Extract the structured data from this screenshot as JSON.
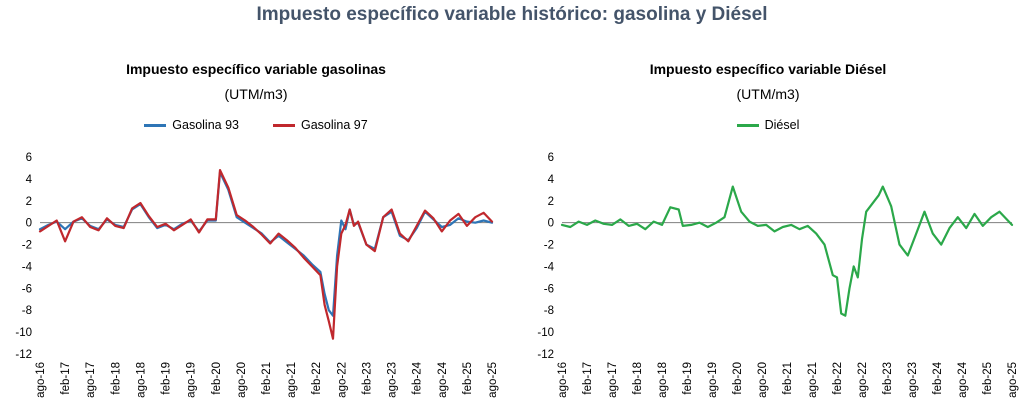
{
  "title": "Impuesto específico variable histórico: gasolina y Diésel",
  "colors": {
    "title": "#44546a",
    "gasolina93": "#2e75b6",
    "gasolina97": "#c0282d",
    "diesel": "#2ba84a"
  },
  "chart_data": [
    {
      "type": "line",
      "title": "Impuesto específico variable gasolinas",
      "subtitle": "(UTM/m3)",
      "ylim": [
        -12,
        6
      ],
      "yticks": [
        6,
        4,
        2,
        0,
        -2,
        -4,
        -6,
        -8,
        -10,
        -12
      ],
      "xlim": [
        "2016-08",
        "2025-08"
      ],
      "xticks": [
        "ago-16",
        "feb-17",
        "ago-17",
        "feb-18",
        "ago-18",
        "feb-19",
        "ago-19",
        "feb-20",
        "ago-20",
        "feb-21",
        "ago-21",
        "feb-22",
        "ago-22",
        "feb-23",
        "ago-23",
        "feb-24",
        "ago-24",
        "feb-25",
        "ago-25"
      ],
      "legend": "top",
      "series": [
        {
          "name": "Gasolina 93",
          "color": "#2e75b6",
          "x": [
            "2016-08",
            "2016-10",
            "2016-12",
            "2017-02",
            "2017-04",
            "2017-06",
            "2017-08",
            "2017-10",
            "2017-12",
            "2018-02",
            "2018-04",
            "2018-06",
            "2018-08",
            "2018-10",
            "2018-12",
            "2019-02",
            "2019-04",
            "2019-06",
            "2019-08",
            "2019-10",
            "2019-12",
            "2020-02",
            "2020-03",
            "2020-05",
            "2020-07",
            "2020-09",
            "2020-11",
            "2021-01",
            "2021-03",
            "2021-05",
            "2021-07",
            "2021-09",
            "2021-11",
            "2022-01",
            "2022-03",
            "2022-04",
            "2022-05",
            "2022-06",
            "2022-07",
            "2022-08",
            "2022-09",
            "2022-10",
            "2022-11",
            "2022-12",
            "2023-02",
            "2023-04",
            "2023-06",
            "2023-08",
            "2023-10",
            "2023-12",
            "2024-02",
            "2024-04",
            "2024-06",
            "2024-08",
            "2024-10",
            "2024-12",
            "2025-02",
            "2025-04",
            "2025-06",
            "2025-08"
          ],
          "y": [
            -0.6,
            -0.2,
            0.1,
            -0.6,
            0.1,
            0.4,
            -0.3,
            -0.6,
            0.3,
            -0.2,
            -0.4,
            1.2,
            1.7,
            0.5,
            -0.5,
            -0.2,
            -0.6,
            -0.1,
            0.2,
            -0.8,
            0.2,
            0.2,
            4.6,
            3.0,
            0.5,
            0.0,
            -0.5,
            -1.0,
            -1.8,
            -1.2,
            -1.8,
            -2.4,
            -3.0,
            -3.8,
            -4.5,
            -6.5,
            -8.0,
            -8.5,
            -3.0,
            0.2,
            -0.6,
            1.2,
            -0.2,
            0.0,
            -2.0,
            -2.4,
            0.5,
            1.0,
            -1.2,
            -1.6,
            -0.5,
            1.0,
            0.3,
            -0.4,
            -0.2,
            0.4,
            0.1,
            0.0,
            0.2,
            0.0
          ]
        },
        {
          "name": "Gasolina 97",
          "color": "#c0282d",
          "x": [
            "2016-08",
            "2016-10",
            "2016-12",
            "2017-02",
            "2017-04",
            "2017-06",
            "2017-08",
            "2017-10",
            "2017-12",
            "2018-02",
            "2018-04",
            "2018-06",
            "2018-08",
            "2018-10",
            "2018-12",
            "2019-02",
            "2019-04",
            "2019-06",
            "2019-08",
            "2019-10",
            "2019-12",
            "2020-02",
            "2020-03",
            "2020-05",
            "2020-07",
            "2020-09",
            "2020-11",
            "2021-01",
            "2021-03",
            "2021-05",
            "2021-07",
            "2021-09",
            "2021-11",
            "2022-01",
            "2022-03",
            "2022-04",
            "2022-05",
            "2022-06",
            "2022-07",
            "2022-08",
            "2022-09",
            "2022-10",
            "2022-11",
            "2022-12",
            "2023-02",
            "2023-04",
            "2023-06",
            "2023-08",
            "2023-10",
            "2023-12",
            "2024-02",
            "2024-04",
            "2024-06",
            "2024-08",
            "2024-10",
            "2024-12",
            "2025-02",
            "2025-04",
            "2025-06",
            "2025-08"
          ],
          "y": [
            -0.8,
            -0.3,
            0.2,
            -1.7,
            0.1,
            0.5,
            -0.4,
            -0.7,
            0.4,
            -0.3,
            -0.5,
            1.3,
            1.8,
            0.6,
            -0.4,
            -0.1,
            -0.7,
            -0.2,
            0.3,
            -0.9,
            0.3,
            0.3,
            4.8,
            3.2,
            0.7,
            0.2,
            -0.4,
            -1.1,
            -1.9,
            -1.0,
            -1.6,
            -2.3,
            -3.2,
            -4.0,
            -4.8,
            -7.5,
            -9.0,
            -10.6,
            -4.0,
            -1.0,
            -0.2,
            1.2,
            -0.3,
            0.1,
            -2.0,
            -2.6,
            0.5,
            1.2,
            -1.0,
            -1.7,
            -0.3,
            1.1,
            0.4,
            -0.8,
            0.2,
            0.8,
            -0.3,
            0.5,
            0.9,
            0.1
          ]
        }
      ]
    },
    {
      "type": "line",
      "title": "Impuesto específico variable Diésel",
      "subtitle": "(UTM/m3)",
      "ylim": [
        -12,
        6
      ],
      "yticks": [
        6,
        4,
        2,
        0,
        -2,
        -4,
        -6,
        -8,
        -10,
        -12
      ],
      "xlim": [
        "2016-08",
        "2025-08"
      ],
      "xticks": [
        "ago-16",
        "feb-17",
        "ago-17",
        "feb-18",
        "ago-18",
        "feb-19",
        "ago-19",
        "feb-20",
        "ago-20",
        "feb-21",
        "ago-21",
        "feb-22",
        "ago-22",
        "feb-23",
        "ago-23",
        "feb-24",
        "ago-24",
        "feb-25",
        "ago-25"
      ],
      "legend": "top",
      "series": [
        {
          "name": "Diésel",
          "color": "#2ba84a",
          "x": [
            "2016-08",
            "2016-10",
            "2016-12",
            "2017-02",
            "2017-04",
            "2017-06",
            "2017-08",
            "2017-10",
            "2017-12",
            "2018-02",
            "2018-04",
            "2018-06",
            "2018-08",
            "2018-10",
            "2018-12",
            "2019-01",
            "2019-03",
            "2019-05",
            "2019-07",
            "2019-09",
            "2019-11",
            "2020-01",
            "2020-03",
            "2020-05",
            "2020-07",
            "2020-09",
            "2020-11",
            "2021-01",
            "2021-03",
            "2021-05",
            "2021-07",
            "2021-09",
            "2021-11",
            "2022-01",
            "2022-02",
            "2022-03",
            "2022-04",
            "2022-05",
            "2022-06",
            "2022-07",
            "2022-08",
            "2022-09",
            "2022-10",
            "2022-11",
            "2022-12",
            "2023-01",
            "2023-03",
            "2023-05",
            "2023-07",
            "2023-09",
            "2023-11",
            "2024-01",
            "2024-03",
            "2024-05",
            "2024-07",
            "2024-09",
            "2024-11",
            "2025-01",
            "2025-03",
            "2025-05",
            "2025-08"
          ],
          "y": [
            -0.2,
            -0.4,
            0.1,
            -0.2,
            0.2,
            -0.1,
            -0.2,
            0.3,
            -0.3,
            -0.1,
            -0.6,
            0.1,
            -0.2,
            1.4,
            1.2,
            -0.3,
            -0.2,
            0.0,
            -0.4,
            0.0,
            0.5,
            3.3,
            1.0,
            0.1,
            -0.3,
            -0.2,
            -0.8,
            -0.4,
            -0.2,
            -0.6,
            -0.3,
            -1.0,
            -2.0,
            -4.8,
            -5.0,
            -8.3,
            -8.5,
            -6.0,
            -4.0,
            -5.0,
            -1.5,
            1.0,
            1.5,
            2.0,
            2.5,
            3.3,
            1.5,
            -2.0,
            -3.0,
            -1.0,
            1.0,
            -1.0,
            -2.0,
            -0.5,
            0.5,
            -0.5,
            0.8,
            -0.3,
            0.5,
            1.0,
            -0.2
          ]
        }
      ]
    }
  ]
}
